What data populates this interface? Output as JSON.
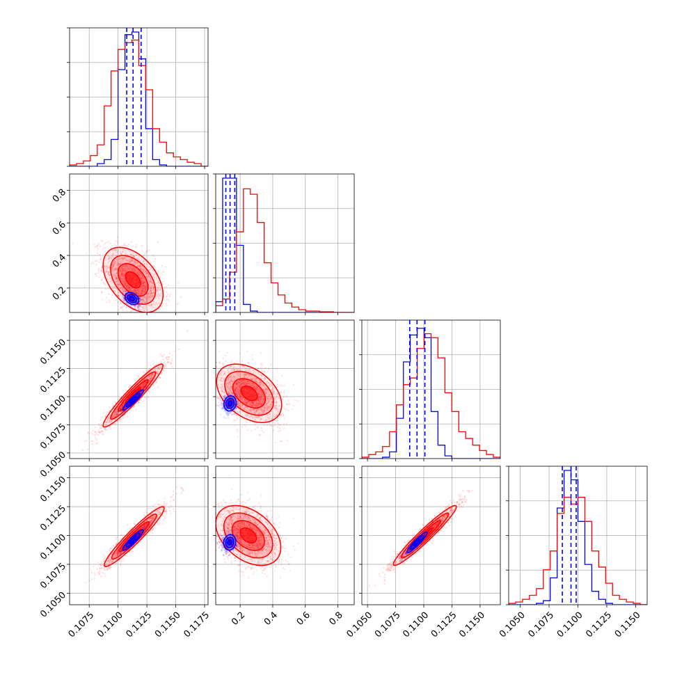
{
  "chart_data": {
    "type": "corner",
    "title": "",
    "colors": {
      "blue": "#0000ff",
      "red": "#ff0000"
    },
    "grid": true,
    "series": [
      {
        "color": "blue"
      },
      {
        "color": "red"
      }
    ],
    "params": [
      {
        "range": [
          0.1058,
          0.1178
        ],
        "ticks": [
          0.1075,
          0.11,
          0.1125,
          0.115,
          0.1175
        ],
        "ticklabels": [
          "0.1075",
          "0.1100",
          "0.1125",
          "0.1150",
          "0.1175"
        ]
      },
      {
        "range": [
          0.05,
          0.9
        ],
        "ticks": [
          0.2,
          0.4,
          0.6,
          0.8
        ],
        "ticklabels": [
          "0.2",
          "0.4",
          "0.6",
          "0.8"
        ]
      },
      {
        "range": [
          0.1045,
          0.1168
        ],
        "ticks": [
          0.105,
          0.1075,
          0.11,
          0.1125,
          0.115
        ],
        "ticklabels": [
          "0.1050",
          "0.1075",
          "0.1100",
          "0.1125",
          "0.1150"
        ]
      },
      {
        "range": [
          0.104,
          0.116
        ],
        "ticks": [
          0.105,
          0.1075,
          0.11,
          0.1125,
          0.115
        ],
        "ticklabels": [
          "0.1050",
          "0.1075",
          "0.1100",
          "0.1125",
          "0.1150"
        ]
      }
    ],
    "histograms": [
      {
        "edges": [
          0.1058,
          0.1064,
          0.107,
          0.1076,
          0.1082,
          0.1088,
          0.1094,
          0.11,
          0.1106,
          0.1112,
          0.1118,
          0.1124,
          0.113,
          0.1136,
          0.1142,
          0.1148,
          0.1154,
          0.116,
          0.1166,
          0.1172,
          0.1178
        ],
        "quantiles": {
          "blue": [
            0.11075,
            0.1113,
            0.112
          ]
        },
        "counts": {
          "blue": [
            0,
            0,
            0,
            0,
            0.02,
            0.05,
            0.2,
            0.72,
            0.98,
            1.0,
            0.8,
            0.28,
            0.05,
            0.01,
            0,
            0,
            0,
            0,
            0,
            0
          ],
          "red": [
            0.01,
            0.02,
            0.04,
            0.08,
            0.16,
            0.45,
            0.71,
            0.87,
            0.92,
            0.94,
            0.75,
            0.57,
            0.28,
            0.18,
            0.1,
            0.07,
            0.05,
            0.03,
            0.02,
            0
          ]
        }
      },
      {
        "edges": [
          0.05,
          0.0925,
          0.135,
          0.1775,
          0.22,
          0.2625,
          0.305,
          0.3475,
          0.39,
          0.4325,
          0.475,
          0.5175,
          0.56,
          0.6025,
          0.645,
          0.6875,
          0.73,
          0.7725,
          0.815,
          0.8575,
          0.9
        ],
        "quantiles": {
          "blue": [
            0.112,
            0.138,
            0.167
          ]
        },
        "counts": {
          "blue": [
            0.08,
            1.0,
            1.0,
            0.5,
            0.06,
            0.01,
            0,
            0,
            0,
            0,
            0,
            0,
            0,
            0,
            0,
            0,
            0,
            0,
            0,
            0
          ],
          "red": [
            0.05,
            0.1,
            0.3,
            0.6,
            0.92,
            0.88,
            0.67,
            0.37,
            0.22,
            0.13,
            0.07,
            0.04,
            0.02,
            0.01,
            0.01,
            0.005,
            0.005,
            0,
            0,
            0
          ]
        }
      },
      {
        "edges": [
          0.1045,
          0.10511,
          0.10573,
          0.10634,
          0.10696,
          0.10757,
          0.10819,
          0.1088,
          0.10942,
          0.11003,
          0.11065,
          0.11126,
          0.11188,
          0.11249,
          0.11311,
          0.11372,
          0.11434,
          0.11495,
          0.11557,
          0.11618,
          0.1168
        ],
        "quantiles": {
          "blue": [
            0.10875,
            0.1094,
            0.1101
          ]
        },
        "counts": {
          "blue": [
            0,
            0,
            0,
            0.01,
            0.05,
            0.3,
            0.72,
            0.92,
            0.97,
            0.9,
            0.35,
            0.1,
            0.02,
            0,
            0,
            0,
            0,
            0,
            0,
            0
          ],
          "red": [
            0.01,
            0.03,
            0.05,
            0.09,
            0.2,
            0.4,
            0.55,
            0.6,
            0.82,
            0.93,
            0.9,
            0.75,
            0.49,
            0.35,
            0.2,
            0.15,
            0.1,
            0.06,
            0.03,
            0.01
          ]
        }
      },
      {
        "edges": [
          0.104,
          0.1046,
          0.1052,
          0.1058,
          0.1064,
          0.107,
          0.1076,
          0.1082,
          0.1088,
          0.1094,
          0.11,
          0.1106,
          0.1112,
          0.1118,
          0.1124,
          0.113,
          0.1136,
          0.1142,
          0.1148,
          0.1154,
          0.116
        ],
        "quantiles": {
          "blue": [
            0.10865,
            0.1094,
            0.10985
          ]
        },
        "counts": {
          "blue": [
            0,
            0,
            0,
            0,
            0.01,
            0.03,
            0.2,
            0.72,
            1.0,
            0.93,
            0.62,
            0.3,
            0.1,
            0.04,
            0.01,
            0,
            0,
            0,
            0,
            0
          ],
          "red": [
            0.01,
            0.02,
            0.04,
            0.07,
            0.12,
            0.26,
            0.4,
            0.68,
            0.8,
            0.75,
            0.8,
            0.62,
            0.4,
            0.28,
            0.16,
            0.07,
            0.04,
            0.02,
            0.01,
            0
          ]
        }
      }
    ],
    "scatter_2d": [
      {
        "x": 0,
        "y": 1,
        "blue": {
          "center": [
            0.1112,
            0.135
          ],
          "sd": [
            0.0004,
            0.025
          ],
          "rho": -0.3,
          "levels": [
            0.5,
            1.0,
            1.5
          ]
        },
        "red": {
          "center": [
            0.1113,
            0.25
          ],
          "sd": [
            0.0013,
            0.1
          ],
          "rho": -0.45,
          "levels": [
            0.5,
            1.0,
            1.5,
            2.0
          ]
        }
      },
      {
        "x": 0,
        "y": 2,
        "blue": {
          "center": [
            0.1113,
            0.1097
          ],
          "sd": [
            0.0006,
            0.0006
          ],
          "rho": 0.93,
          "levels": [
            0.5,
            1.0,
            1.5
          ]
        },
        "red": {
          "center": [
            0.1113,
            0.1101
          ],
          "sd": [
            0.0013,
            0.0014
          ],
          "rho": 0.95,
          "levels": [
            0.5,
            1.0,
            1.5,
            2.0
          ]
        }
      },
      {
        "x": 1,
        "y": 2,
        "blue": {
          "center": [
            0.138,
            0.1094
          ],
          "sd": [
            0.025,
            0.00045
          ],
          "rho": 0.1,
          "levels": [
            0.5,
            1.0,
            1.5
          ]
        },
        "red": {
          "center": [
            0.255,
            0.1103
          ],
          "sd": [
            0.1,
            0.0013
          ],
          "rho": -0.4,
          "levels": [
            0.5,
            1.0,
            1.5,
            2.0
          ]
        }
      },
      {
        "x": 0,
        "y": 3,
        "blue": {
          "center": [
            0.1113,
            0.1096
          ],
          "sd": [
            0.0006,
            0.0006
          ],
          "rho": 0.92,
          "levels": [
            0.5,
            1.0,
            1.5
          ]
        },
        "red": {
          "center": [
            0.1114,
            0.1099
          ],
          "sd": [
            0.0013,
            0.0013
          ],
          "rho": 0.95,
          "levels": [
            0.5,
            1.0,
            1.5,
            2.0
          ]
        }
      },
      {
        "x": 1,
        "y": 3,
        "blue": {
          "center": [
            0.136,
            0.1094
          ],
          "sd": [
            0.025,
            0.00045
          ],
          "rho": 0.1,
          "levels": [
            0.5,
            1.0,
            1.5
          ]
        },
        "red": {
          "center": [
            0.25,
            0.11
          ],
          "sd": [
            0.1,
            0.0013
          ],
          "rho": -0.4,
          "levels": [
            0.5,
            1.0,
            1.5,
            2.0
          ]
        }
      },
      {
        "x": 2,
        "y": 3,
        "blue": {
          "center": [
            0.1094,
            0.1094
          ],
          "sd": [
            0.0006,
            0.0006
          ],
          "rho": 0.93,
          "levels": [
            0.5,
            1.0,
            1.5
          ]
        },
        "red": {
          "center": [
            0.1101,
            0.11
          ],
          "sd": [
            0.0014,
            0.0013
          ],
          "rho": 0.96,
          "levels": [
            0.5,
            1.0,
            1.5,
            2.0
          ]
        }
      }
    ]
  }
}
